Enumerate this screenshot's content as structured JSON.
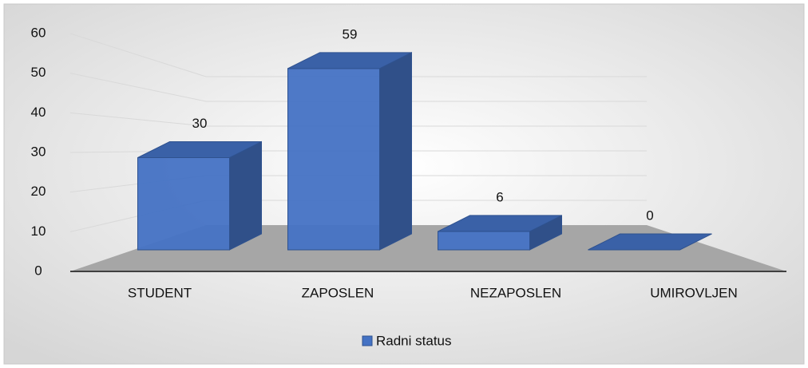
{
  "chart_data": {
    "type": "bar3d",
    "categories": [
      "STUDENT",
      "ZAPOSLEN",
      "NEZAPOSLEN",
      "UMIROVLJEN"
    ],
    "series": [
      {
        "name": "Radni status",
        "color": "#4472c4",
        "values": [
          30,
          59,
          6,
          0
        ]
      }
    ],
    "ylim": [
      0,
      60
    ],
    "yticks": [
      0,
      10,
      20,
      30,
      40,
      50,
      60
    ],
    "grid": true,
    "legend": "bottom"
  }
}
